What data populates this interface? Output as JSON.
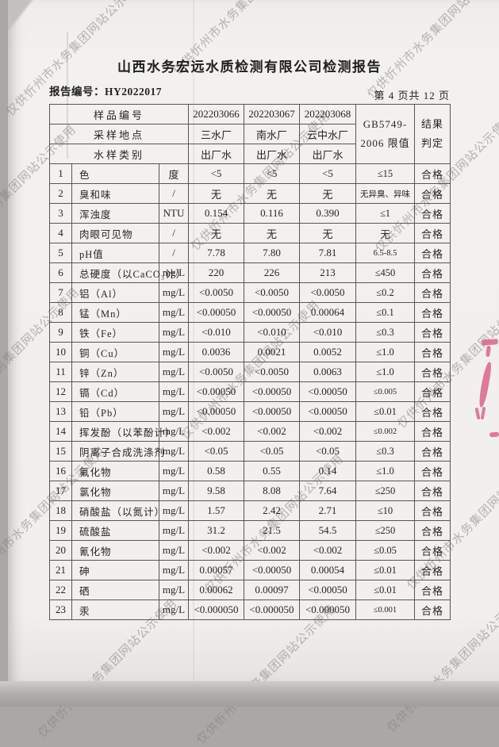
{
  "title": "山西水务宏远水质检测有限公司检测报告",
  "report_no": "报告编号：HY2022017",
  "page_info": "第 4 页共 12 页",
  "watermark_text": "仅供忻州市水务集团网站公示使用",
  "colors": {
    "paper": "#f2f0ed",
    "border": "#58564f",
    "watermark_gray": "#807e7b",
    "red_mark": "#d95c80"
  },
  "table": {
    "header_rows": [
      {
        "label": "样品编号",
        "values": [
          "202203066",
          "202203067",
          "202203068"
        ]
      },
      {
        "label": "采样地点",
        "values": [
          "三水厂",
          "南水厂",
          "云中水厂"
        ]
      },
      {
        "label": "水样类别",
        "values": [
          "出厂水",
          "出厂水",
          "出厂水"
        ]
      }
    ],
    "limit_header_line1": "GB5749-",
    "limit_header_line2": "2006 限值",
    "result_header_line1": "结果",
    "result_header_line2": "判定",
    "rows": [
      {
        "no": "1",
        "name": "色",
        "unit": "度",
        "v1": "<5",
        "v2": "<5",
        "v3": "<5",
        "limit": "≤15",
        "result": "合格"
      },
      {
        "no": "2",
        "name": "臭和味",
        "unit": "/",
        "v1": "无",
        "v2": "无",
        "v3": "无",
        "limit": "无异臭、异味",
        "result": "合格"
      },
      {
        "no": "3",
        "name": "浑浊度",
        "unit": "NTU",
        "v1": "0.154",
        "v2": "0.116",
        "v3": "0.390",
        "limit": "≤1",
        "result": "合格"
      },
      {
        "no": "4",
        "name": "肉眼可见物",
        "unit": "/",
        "v1": "无",
        "v2": "无",
        "v3": "无",
        "limit": "无",
        "result": "合格"
      },
      {
        "no": "5",
        "name": "pH值",
        "unit": "/",
        "v1": "7.78",
        "v2": "7.80",
        "v3": "7.81",
        "limit": "6.5-8.5",
        "result": "合格"
      },
      {
        "no": "6",
        "name": "总硬度（以CaCO₃计）",
        "unit": "mg/L",
        "v1": "220",
        "v2": "226",
        "v3": "213",
        "limit": "≤450",
        "result": "合格"
      },
      {
        "no": "7",
        "name": "铝（Al）",
        "unit": "mg/L",
        "v1": "<0.0050",
        "v2": "<0.0050",
        "v3": "<0.0050",
        "limit": "≤0.2",
        "result": "合格"
      },
      {
        "no": "8",
        "name": "锰（Mn）",
        "unit": "mg/L",
        "v1": "<0.00050",
        "v2": "<0.00050",
        "v3": "0.00064",
        "limit": "≤0.1",
        "result": "合格"
      },
      {
        "no": "9",
        "name": "铁（Fe）",
        "unit": "mg/L",
        "v1": "<0.010",
        "v2": "<0.010",
        "v3": "<0.010",
        "limit": "≤0.3",
        "result": "合格"
      },
      {
        "no": "10",
        "name": "铜（Cu）",
        "unit": "mg/L",
        "v1": "0.0036",
        "v2": "0.0021",
        "v3": "0.0052",
        "limit": "≤1.0",
        "result": "合格"
      },
      {
        "no": "11",
        "name": "锌（Zn）",
        "unit": "mg/L",
        "v1": "<0.0050",
        "v2": "<0.0050",
        "v3": "0.0063",
        "limit": "≤1.0",
        "result": "合格"
      },
      {
        "no": "12",
        "name": "镉（Cd）",
        "unit": "mg/L",
        "v1": "<0.00050",
        "v2": "<0.00050",
        "v3": "<0.00050",
        "limit": "≤0.005",
        "result": "合格"
      },
      {
        "no": "13",
        "name": "铅（Pb）",
        "unit": "mg/L",
        "v1": "<0.00050",
        "v2": "<0.00050",
        "v3": "<0.00050",
        "limit": "≤0.01",
        "result": "合格"
      },
      {
        "no": "14",
        "name": "挥发酚（以苯酚计）",
        "unit": "mg/L",
        "v1": "<0.002",
        "v2": "<0.002",
        "v3": "<0.002",
        "limit": "≤0.002",
        "result": "合格"
      },
      {
        "no": "15",
        "name": "阴离子合成洗涤剂",
        "unit": "mg/L",
        "v1": "<0.05",
        "v2": "<0.05",
        "v3": "<0.05",
        "limit": "≤0.3",
        "result": "合格"
      },
      {
        "no": "16",
        "name": "氟化物",
        "unit": "mg/L",
        "v1": "0.58",
        "v2": "0.55",
        "v3": "0.14",
        "limit": "≤1.0",
        "result": "合格"
      },
      {
        "no": "17",
        "name": "氯化物",
        "unit": "mg/L",
        "v1": "9.58",
        "v2": "8.08",
        "v3": "7.64",
        "limit": "≤250",
        "result": "合格"
      },
      {
        "no": "18",
        "name": "硝酸盐（以氮计）",
        "unit": "mg/L",
        "v1": "1.57",
        "v2": "2.42",
        "v3": "2.71",
        "limit": "≤10",
        "result": "合格"
      },
      {
        "no": "19",
        "name": "硫酸盐",
        "unit": "mg/L",
        "v1": "31.2",
        "v2": "21.5",
        "v3": "54.5",
        "limit": "≤250",
        "result": "合格"
      },
      {
        "no": "20",
        "name": "氰化物",
        "unit": "mg/L",
        "v1": "<0.002",
        "v2": "<0.002",
        "v3": "<0.002",
        "limit": "≤0.05",
        "result": "合格"
      },
      {
        "no": "21",
        "name": "砷",
        "unit": "mg/L",
        "v1": "0.00057",
        "v2": "<0.00050",
        "v3": "0.00054",
        "limit": "≤0.01",
        "result": "合格"
      },
      {
        "no": "22",
        "name": "硒",
        "unit": "mg/L",
        "v1": "0.00062",
        "v2": "0.00097",
        "v3": "<0.00050",
        "limit": "≤0.01",
        "result": "合格"
      },
      {
        "no": "23",
        "name": "汞",
        "unit": "mg/L",
        "v1": "<0.000050",
        "v2": "<0.000050",
        "v3": "<0.000050",
        "limit": "≤0.001",
        "result": "合格"
      }
    ]
  }
}
